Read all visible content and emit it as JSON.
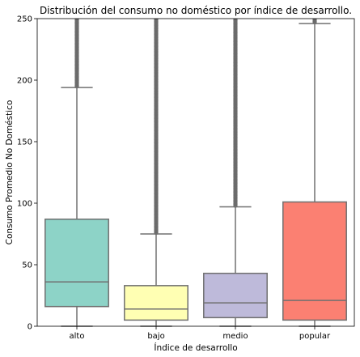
{
  "chart_data": {
    "type": "box",
    "title": "Distribución del consumo no doméstico por índice de desarrollo.",
    "xlabel": "Índice de desarrollo",
    "ylabel": "Consumo Promedio No Doméstico",
    "ylim": [
      0,
      250
    ],
    "yticks": [
      0,
      50,
      100,
      150,
      200,
      250
    ],
    "grid": false,
    "categories": [
      "alto",
      "bajo",
      "medio",
      "popular"
    ],
    "boxes": [
      {
        "category": "alto",
        "whisker_low": 0,
        "q1": 16,
        "median": 36,
        "q3": 87,
        "whisker_high": 194,
        "color": "#8dd3c7",
        "outliers_from": 195,
        "outliers_to": 250
      },
      {
        "category": "bajo",
        "whisker_low": 0,
        "q1": 5,
        "median": 14,
        "q3": 33,
        "whisker_high": 75,
        "color": "#ffffb3",
        "outliers_from": 76,
        "outliers_to": 250
      },
      {
        "category": "medio",
        "whisker_low": 0,
        "q1": 7,
        "median": 19,
        "q3": 43,
        "whisker_high": 97,
        "color": "#bebada",
        "outliers_from": 98,
        "outliers_to": 250
      },
      {
        "category": "popular",
        "whisker_low": 0,
        "q1": 5,
        "median": 21,
        "q3": 101,
        "whisker_high": 246,
        "color": "#fb8072",
        "outliers_from": 247,
        "outliers_to": 250
      }
    ]
  }
}
